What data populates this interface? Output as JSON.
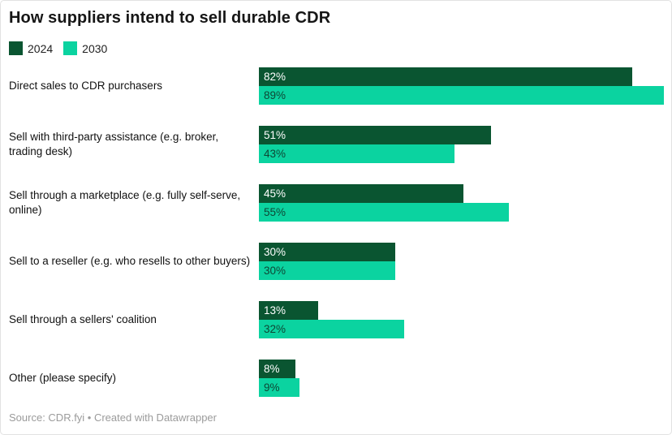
{
  "title": "How suppliers intend to sell durable CDR",
  "legend": {
    "items": [
      {
        "label": "2024",
        "color": "#0a5531"
      },
      {
        "label": "2030",
        "color": "#0bd3a0"
      }
    ]
  },
  "colors": {
    "series_2024": "#0a5531",
    "series_2030": "#0bd3a0",
    "value_on_2024": "#ffffff",
    "value_on_2030": "#0e4634",
    "title_text": "#161616",
    "footer_text": "#9b9b9b"
  },
  "footer": "Source: CDR.fyi • Created with Datawrapper",
  "chart_data": {
    "type": "bar",
    "orientation": "horizontal",
    "title": "How suppliers intend to sell durable CDR",
    "categories": [
      "Direct sales to CDR purchasers",
      "Sell with third-party assistance (e.g. broker, trading desk)",
      "Sell through a marketplace (e.g. fully self-serve, online)",
      "Sell to a reseller (e.g. who resells to other buyers)",
      "Sell through a sellers' coalition",
      "Other (please specify)"
    ],
    "series": [
      {
        "name": "2024",
        "values": [
          82,
          51,
          45,
          30,
          13,
          8
        ]
      },
      {
        "name": "2030",
        "values": [
          89,
          43,
          55,
          30,
          32,
          9
        ]
      }
    ],
    "value_suffix": "%",
    "xlim": [
      0,
      89
    ],
    "grid": false,
    "value_labels": "inside-left",
    "legend_position": "top-left",
    "source_line": "Source: CDR.fyi • Created with Datawrapper"
  }
}
